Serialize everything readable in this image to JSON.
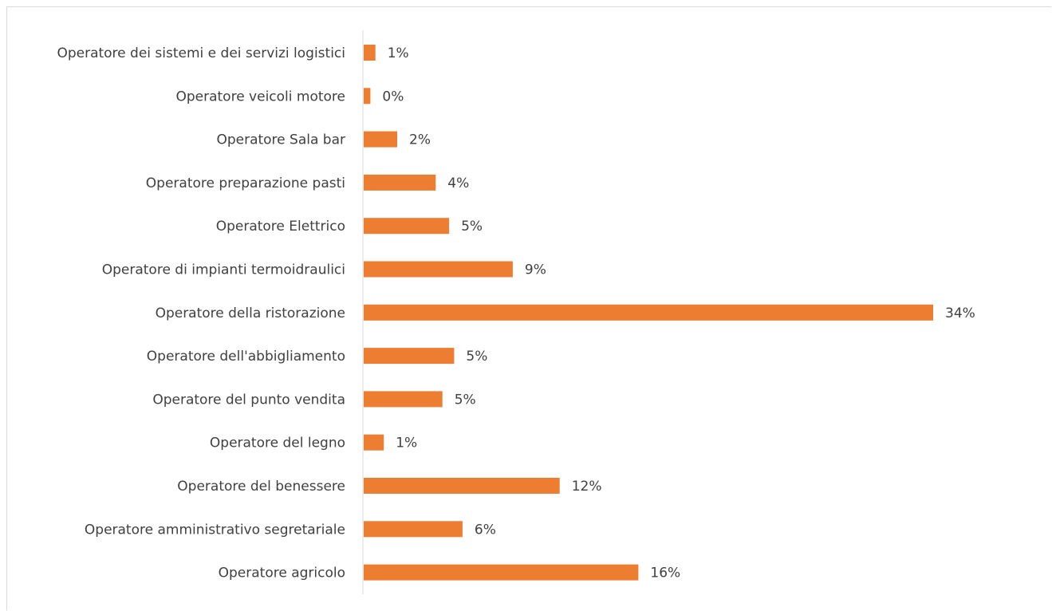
{
  "colors": {
    "bar": "#ED7D31",
    "axis": "#d9d9d9",
    "text": "#404040"
  },
  "chart_data": {
    "type": "bar",
    "orientation": "horizontal",
    "title": "",
    "xlabel": "",
    "ylabel": "",
    "grid": false,
    "categories": [
      "Operatore dei sistemi e dei servizi logistici",
      "Operatore veicoli motore",
      "Operatore Sala bar",
      "Operatore preparazione pasti",
      "Operatore Elettrico",
      "Operatore di impianti termoidraulici",
      "Operatore della ristorazione",
      "Operatore dell'abbigliamento",
      "Operatore del punto vendita",
      "Operatore del legno",
      "Operatore del benessere",
      "Operatore amministrativo segretariale",
      "Operatore agricolo"
    ],
    "values": [
      0.7,
      0.4,
      2.0,
      4.3,
      5.1,
      8.9,
      34.0,
      5.4,
      4.7,
      1.2,
      11.7,
      5.9,
      16.4
    ],
    "labels": [
      "1%",
      "0%",
      "2%",
      "4%",
      "5%",
      "9%",
      "34%",
      "5%",
      "5%",
      "1%",
      "12%",
      "6%",
      "16%"
    ],
    "xlim": [
      0,
      34
    ]
  }
}
